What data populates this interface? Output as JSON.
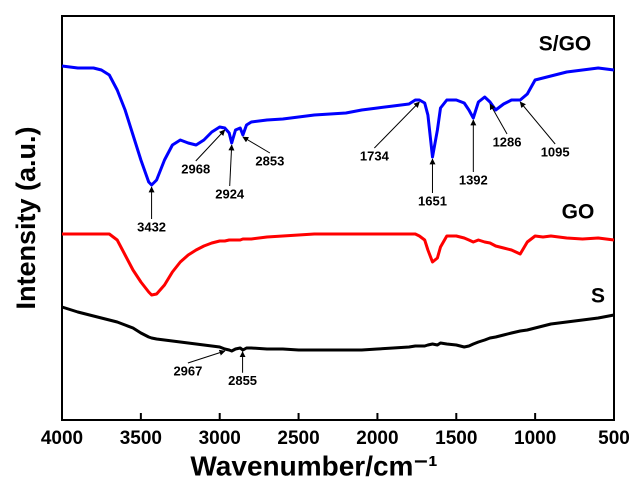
{
  "chart_data": {
    "type": "line",
    "xlabel": "Wavenumber/cm⁻¹",
    "ylabel": "Intensity (a.u.)",
    "xlim": [
      4000,
      500
    ],
    "ylim": [
      0,
      404
    ],
    "xticks": [
      4000,
      3500,
      3000,
      2500,
      2000,
      1500,
      1000,
      500
    ],
    "x": [
      4000,
      3900,
      3800,
      3750,
      3700,
      3650,
      3600,
      3550,
      3500,
      3450,
      3432,
      3400,
      3350,
      3300,
      3250,
      3200,
      3150,
      3100,
      3050,
      3000,
      2968,
      2940,
      2924,
      2900,
      2870,
      2853,
      2830,
      2800,
      2700,
      2600,
      2500,
      2400,
      2300,
      2200,
      2100,
      2000,
      1900,
      1800,
      1760,
      1734,
      1700,
      1680,
      1651,
      1620,
      1600,
      1560,
      1500,
      1450,
      1420,
      1392,
      1360,
      1320,
      1286,
      1250,
      1200,
      1150,
      1095,
      1050,
      1000,
      950,
      900,
      800,
      700,
      600,
      500
    ],
    "series": [
      {
        "name": "S/GO",
        "color": "#0000ff",
        "values": [
          354,
          352,
          352,
          350,
          345,
          330,
          310,
          285,
          260,
          238,
          235,
          240,
          260,
          275,
          280,
          277,
          275,
          280,
          288,
          293,
          292,
          287,
          277,
          290,
          292,
          285,
          295,
          298,
          300,
          301,
          303,
          305,
          306,
          307,
          310,
          312,
          314,
          316,
          320,
          320,
          317,
          305,
          263,
          290,
          312,
          320,
          320,
          317,
          310,
          302,
          318,
          323,
          318,
          310,
          316,
          320,
          320,
          326,
          340,
          342,
          344,
          348,
          350,
          352,
          350
        ],
        "peaks": [
          3432,
          2968,
          2924,
          2853,
          1734,
          1651,
          1392,
          1286,
          1095
        ]
      },
      {
        "name": "GO",
        "color": "#ff0000",
        "values": [
          186,
          186,
          186,
          186,
          186,
          180,
          165,
          150,
          138,
          128,
          125,
          126,
          135,
          148,
          158,
          165,
          170,
          174,
          177,
          179,
          179,
          180,
          180,
          180,
          180,
          181,
          181,
          181,
          183,
          184,
          185,
          186,
          186,
          186,
          186,
          186,
          186,
          186,
          186,
          184,
          180,
          170,
          158,
          162,
          173,
          184,
          184,
          182,
          180,
          178,
          180,
          178,
          177,
          174,
          172,
          170,
          166,
          178,
          184,
          183,
          184,
          182,
          181,
          182,
          180
        ],
        "peaks": []
      },
      {
        "name": "S",
        "color": "#000000",
        "values": [
          113,
          108,
          104,
          102,
          100,
          98,
          95,
          92,
          87,
          83,
          82,
          81,
          80,
          79,
          78,
          77,
          76,
          75,
          74,
          73,
          71,
          70,
          69,
          71,
          72,
          70,
          72,
          72,
          71,
          71,
          70,
          70,
          70,
          70,
          70,
          71,
          72,
          73,
          74,
          74,
          74,
          75,
          76,
          75,
          77,
          76,
          75,
          73,
          74,
          76,
          78,
          80,
          82,
          83,
          85,
          87,
          89,
          90,
          92,
          94,
          96,
          98,
          100,
          102,
          105
        ],
        "peaks": [
          2967,
          2855
        ]
      }
    ]
  }
}
